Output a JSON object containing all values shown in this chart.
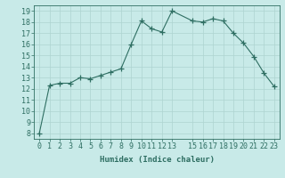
{
  "x": [
    0,
    1,
    2,
    3,
    4,
    5,
    6,
    7,
    8,
    9,
    10,
    11,
    12,
    13,
    15,
    16,
    17,
    18,
    19,
    20,
    21,
    22,
    23
  ],
  "y": [
    8.0,
    12.3,
    12.5,
    12.5,
    13.0,
    12.9,
    13.2,
    13.5,
    13.8,
    16.0,
    18.1,
    17.4,
    17.1,
    19.0,
    18.1,
    18.0,
    18.3,
    18.1,
    17.0,
    16.1,
    14.9,
    13.4,
    12.2
  ],
  "line_color": "#2e6e62",
  "marker": "+",
  "marker_size": 4,
  "background_color": "#c8eae8",
  "grid_color": "#aed4d0",
  "xlabel": "Humidex (Indice chaleur)",
  "xlim": [
    -0.5,
    23.5
  ],
  "ylim": [
    7.5,
    19.5
  ],
  "yticks": [
    8,
    9,
    10,
    11,
    12,
    13,
    14,
    15,
    16,
    17,
    18,
    19
  ],
  "xticks": [
    0,
    1,
    2,
    3,
    4,
    5,
    6,
    7,
    8,
    9,
    10,
    11,
    12,
    13,
    15,
    16,
    17,
    18,
    19,
    20,
    21,
    22,
    23
  ],
  "text_color": "#2e6e62",
  "label_fontsize": 6.5,
  "tick_fontsize": 6.0
}
